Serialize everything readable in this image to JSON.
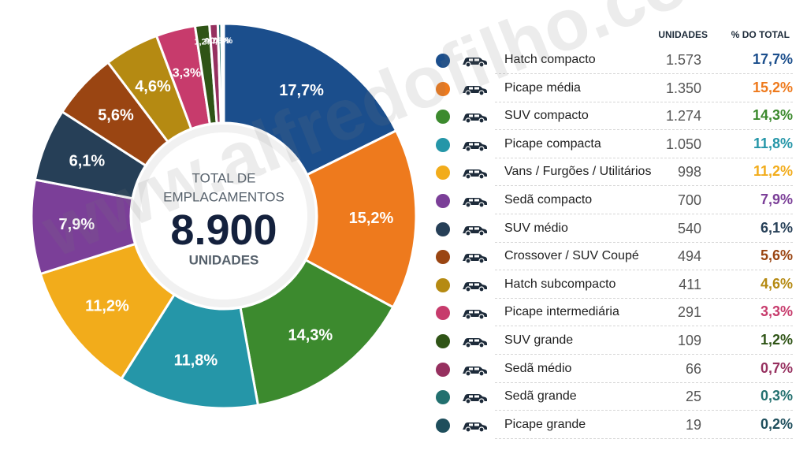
{
  "chart_data": {
    "type": "pie",
    "center": {
      "line1": "TOTAL DE",
      "line2": "EMPLACAMENTOS",
      "total": "8.900",
      "unit": "UNIDADES"
    },
    "column_headers": {
      "units": "UNIDADES",
      "pct": "% DO TOTAL"
    },
    "series": [
      {
        "name": "Hatch compacto",
        "units": 1573,
        "units_label": "1.573",
        "pct": 17.7,
        "pct_label": "17,7%",
        "color": "#1b4e8c"
      },
      {
        "name": "Picape média",
        "units": 1350,
        "units_label": "1.350",
        "pct": 15.2,
        "pct_label": "15,2%",
        "color": "#ee7a1d"
      },
      {
        "name": "SUV compacto",
        "units": 1274,
        "units_label": "1.274",
        "pct": 14.3,
        "pct_label": "14,3%",
        "color": "#3c8a2e"
      },
      {
        "name": "Picape compacta",
        "units": 1050,
        "units_label": "1.050",
        "pct": 11.8,
        "pct_label": "11,8%",
        "color": "#2596a8"
      },
      {
        "name": "Vans / Furgões / Utilitários",
        "units": 998,
        "units_label": "998",
        "pct": 11.2,
        "pct_label": "11,2%",
        "color": "#f2ac1b"
      },
      {
        "name": "Sedã compacto",
        "units": 700,
        "units_label": "700",
        "pct": 7.9,
        "pct_label": "7,9%",
        "color": "#7b3f98"
      },
      {
        "name": "SUV médio",
        "units": 540,
        "units_label": "540",
        "pct": 6.1,
        "pct_label": "6,1%",
        "color": "#263f57"
      },
      {
        "name": "Crossover / SUV Coupé",
        "units": 494,
        "units_label": "494",
        "pct": 5.6,
        "pct_label": "5,6%",
        "color": "#9a4512"
      },
      {
        "name": "Hatch subcompacto",
        "units": 411,
        "units_label": "411",
        "pct": 4.6,
        "pct_label": "4,6%",
        "color": "#b58a12"
      },
      {
        "name": "Picape intermediária",
        "units": 291,
        "units_label": "291",
        "pct": 3.3,
        "pct_label": "3,3%",
        "color": "#c73b6c"
      },
      {
        "name": "SUV grande",
        "units": 109,
        "units_label": "109",
        "pct": 1.2,
        "pct_label": "1,2%",
        "color": "#2f5416"
      },
      {
        "name": "Sedã médio",
        "units": 66,
        "units_label": "66",
        "pct": 0.7,
        "pct_label": "0,7%",
        "color": "#96305f"
      },
      {
        "name": "Sedã grande",
        "units": 25,
        "units_label": "25",
        "pct": 0.3,
        "pct_label": "0,3%",
        "color": "#22706f"
      },
      {
        "name": "Picape grande",
        "units": 19,
        "units_label": "19",
        "pct": 0.2,
        "pct_label": "0,2%",
        "color": "#1e4e5c"
      }
    ],
    "legend": "right"
  },
  "icons": {
    "row_icon": "car-icon"
  },
  "watermark": "www.alfredofilho.com"
}
